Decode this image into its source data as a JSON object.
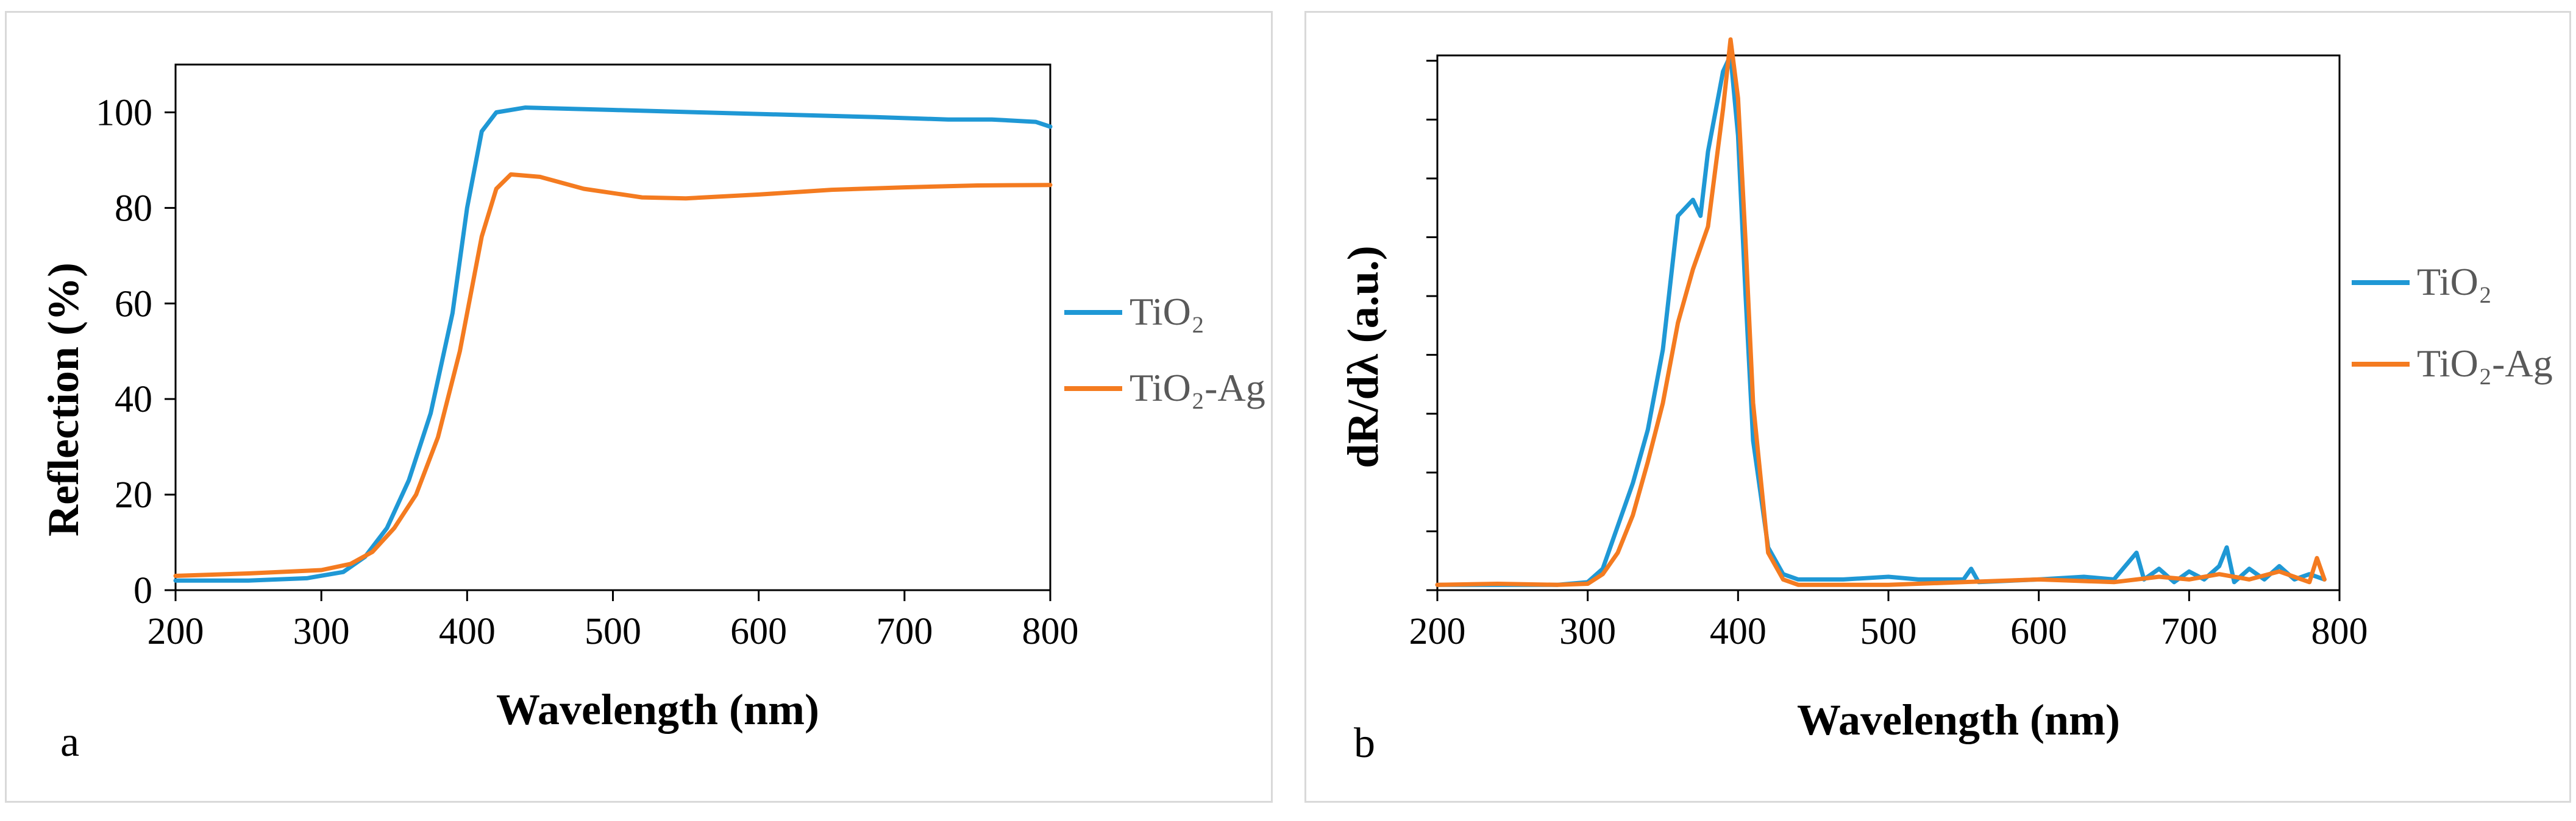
{
  "colors": {
    "tio2": "#1f98d5",
    "tio2_ag": "#f47b20",
    "axis": "#000000",
    "legend_text": "#595959"
  },
  "chart_data": [
    {
      "type": "line",
      "panel_label": "a",
      "xlabel": "Wavelength (nm)",
      "ylabel": "Reflection (%)",
      "xlim": [
        200,
        800
      ],
      "ylim": [
        0,
        110
      ],
      "x_ticks": [
        200,
        300,
        400,
        500,
        600,
        700,
        800
      ],
      "x_tick_labels": [
        "200",
        "300",
        "400",
        "500",
        "600",
        "700",
        "800"
      ],
      "y_ticks": [
        0,
        20,
        40,
        60,
        80,
        100
      ],
      "y_tick_labels": [
        "0",
        "20",
        "40",
        "60",
        "80",
        "100"
      ],
      "grid": false,
      "legend_position": "right",
      "series": [
        {
          "name": "TiO₂",
          "x": [
            200,
            250,
            290,
            315,
            330,
            345,
            360,
            375,
            390,
            400,
            410,
            420,
            440,
            500,
            560,
            620,
            680,
            730,
            760,
            790,
            800
          ],
          "y": [
            2,
            2,
            2.5,
            3.8,
            7,
            13,
            23,
            37,
            58,
            80,
            96,
            100,
            101,
            100.5,
            100,
            99.5,
            99,
            98.5,
            98.5,
            98,
            97
          ]
        },
        {
          "name": "TiO₂-Ag",
          "x": [
            200,
            250,
            300,
            320,
            335,
            350,
            365,
            380,
            395,
            410,
            420,
            430,
            450,
            480,
            520,
            550,
            600,
            650,
            700,
            750,
            800
          ],
          "y": [
            3,
            3.5,
            4.2,
            5.5,
            8,
            13,
            20,
            32,
            50,
            74,
            84,
            87,
            86.5,
            84,
            82.2,
            82,
            82.8,
            83.8,
            84.3,
            84.7,
            84.8
          ]
        }
      ]
    },
    {
      "type": "line",
      "panel_label": "b",
      "xlabel": "Wavelength (nm)",
      "ylabel": "dR/dλ (a.u.)",
      "xlim": [
        200,
        800
      ],
      "ylim": [
        0,
        1
      ],
      "x_ticks": [
        200,
        300,
        400,
        500,
        600,
        700,
        800
      ],
      "x_tick_labels": [
        "200",
        "300",
        "400",
        "500",
        "600",
        "700",
        "800"
      ],
      "y_ticks": [
        0,
        0.11,
        0.22,
        0.33,
        0.44,
        0.55,
        0.66,
        0.77,
        0.88,
        0.99
      ],
      "grid": false,
      "legend_position": "right",
      "series": [
        {
          "name": "TiO₂",
          "x": [
            200,
            240,
            280,
            300,
            310,
            320,
            330,
            340,
            350,
            360,
            370,
            375,
            380,
            390,
            395,
            400,
            405,
            410,
            420,
            430,
            440,
            470,
            500,
            520,
            550,
            555,
            560,
            600,
            630,
            650,
            665,
            670,
            680,
            690,
            700,
            710,
            720,
            725,
            730,
            740,
            750,
            760,
            770,
            780,
            790
          ],
          "y": [
            0.01,
            0.01,
            0.01,
            0.015,
            0.04,
            0.12,
            0.2,
            0.3,
            0.45,
            0.7,
            0.73,
            0.7,
            0.82,
            0.97,
            1.0,
            0.85,
            0.55,
            0.28,
            0.08,
            0.03,
            0.02,
            0.02,
            0.025,
            0.02,
            0.02,
            0.04,
            0.015,
            0.02,
            0.025,
            0.02,
            0.07,
            0.02,
            0.04,
            0.015,
            0.035,
            0.02,
            0.045,
            0.08,
            0.015,
            0.04,
            0.02,
            0.045,
            0.02,
            0.03,
            0.02
          ]
        },
        {
          "name": "TiO₂-Ag",
          "x": [
            200,
            240,
            280,
            300,
            310,
            320,
            330,
            340,
            350,
            360,
            370,
            380,
            390,
            395,
            400,
            405,
            410,
            420,
            430,
            440,
            500,
            550,
            600,
            650,
            680,
            700,
            720,
            740,
            760,
            780,
            785,
            790
          ],
          "y": [
            0.01,
            0.012,
            0.01,
            0.012,
            0.03,
            0.07,
            0.14,
            0.24,
            0.35,
            0.5,
            0.6,
            0.68,
            0.9,
            1.03,
            0.92,
            0.65,
            0.35,
            0.07,
            0.02,
            0.01,
            0.01,
            0.015,
            0.02,
            0.015,
            0.025,
            0.02,
            0.03,
            0.02,
            0.035,
            0.015,
            0.06,
            0.02
          ]
        }
      ]
    }
  ]
}
